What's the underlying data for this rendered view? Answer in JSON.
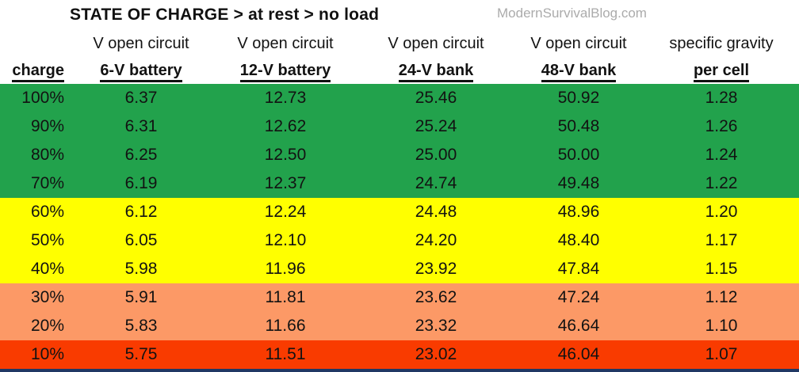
{
  "page": {
    "title": "STATE OF CHARGE > at rest > no load",
    "watermark": "ModernSurvivalBlog.com"
  },
  "table": {
    "header_row1": [
      "",
      "V open circuit",
      "V open circuit",
      "V open circuit",
      "V open circuit",
      "specific gravity"
    ],
    "header_row2": [
      "charge",
      "6-V battery",
      "12-V battery",
      "24-V bank",
      "48-V bank",
      "per cell"
    ],
    "rows": [
      [
        "100%",
        "6.37",
        "12.73",
        "25.46",
        "50.92",
        "1.28"
      ],
      [
        "90%",
        "6.31",
        "12.62",
        "25.24",
        "50.48",
        "1.26"
      ],
      [
        "80%",
        "6.25",
        "12.50",
        "25.00",
        "50.00",
        "1.24"
      ],
      [
        "70%",
        "6.19",
        "12.37",
        "24.74",
        "49.48",
        "1.22"
      ],
      [
        "60%",
        "6.12",
        "12.24",
        "24.48",
        "48.96",
        "1.20"
      ],
      [
        "50%",
        "6.05",
        "12.10",
        "24.20",
        "48.40",
        "1.17"
      ],
      [
        "40%",
        "5.98",
        "11.96",
        "23.92",
        "47.84",
        "1.15"
      ],
      [
        "30%",
        "5.91",
        "11.81",
        "23.62",
        "47.24",
        "1.12"
      ],
      [
        "20%",
        "5.83",
        "11.66",
        "23.32",
        "46.64",
        "1.10"
      ],
      [
        "10%",
        "5.75",
        "11.51",
        "23.02",
        "46.04",
        "1.07"
      ]
    ],
    "row_bands": [
      "green",
      "green",
      "green",
      "green",
      "yellow",
      "yellow",
      "yellow",
      "orange",
      "orange",
      "red"
    ]
  },
  "colors": {
    "green": "#22a24c",
    "yellow": "#ffff00",
    "orange": "#fc9966",
    "red": "#f93b00",
    "bottom_bar": "#203864",
    "watermark_gray": "#ababab",
    "text": "#121212"
  },
  "chart_data": {
    "type": "table",
    "title": "STATE OF CHARGE > at rest > no load",
    "source_watermark": "ModernSurvivalBlog.com",
    "columns": [
      "charge",
      "V open circuit 6-V battery",
      "V open circuit 12-V battery",
      "V open circuit 24-V bank",
      "V open circuit 48-V bank",
      "specific gravity per cell"
    ],
    "rows": [
      [
        "100%",
        6.37,
        12.73,
        25.46,
        50.92,
        1.28
      ],
      [
        "90%",
        6.31,
        12.62,
        25.24,
        50.48,
        1.26
      ],
      [
        "80%",
        6.25,
        12.5,
        25.0,
        50.0,
        1.24
      ],
      [
        "70%",
        6.19,
        12.37,
        24.74,
        49.48,
        1.22
      ],
      [
        "60%",
        6.12,
        12.24,
        24.48,
        48.96,
        1.2
      ],
      [
        "50%",
        6.05,
        12.1,
        24.2,
        48.4,
        1.17
      ],
      [
        "40%",
        5.98,
        11.96,
        23.92,
        47.84,
        1.15
      ],
      [
        "30%",
        5.91,
        11.81,
        23.62,
        47.24,
        1.12
      ],
      [
        "20%",
        5.83,
        11.66,
        23.32,
        46.64,
        1.1
      ],
      [
        "10%",
        5.75,
        11.51,
        23.02,
        46.04,
        1.07
      ]
    ],
    "row_color_bands": {
      "green": [
        "100%",
        "90%",
        "80%",
        "70%"
      ],
      "yellow": [
        "60%",
        "50%",
        "40%"
      ],
      "orange": [
        "30%",
        "20%"
      ],
      "red": [
        "10%"
      ]
    }
  }
}
